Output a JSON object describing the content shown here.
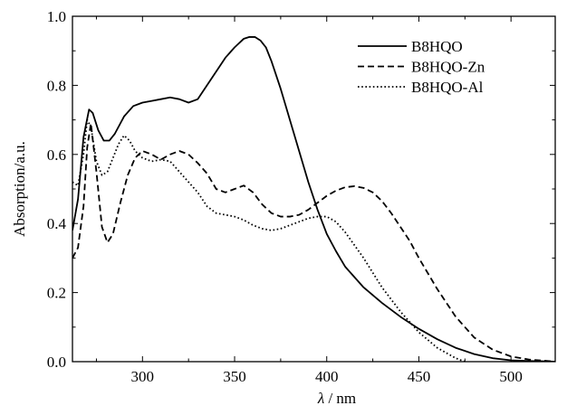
{
  "chart_data": {
    "type": "line",
    "xlabel_symbol": "λ",
    "xlabel_unit": " / nm",
    "ylabel": "Absorption/a.u.",
    "xlim": [
      262,
      524
    ],
    "ylim": [
      0.0,
      1.0
    ],
    "x_ticks": [
      300,
      350,
      400,
      450,
      500
    ],
    "x_tick_labels": [
      "300",
      "350",
      "400",
      "450",
      "500"
    ],
    "y_ticks": [
      0.0,
      0.2,
      0.4,
      0.6,
      0.8,
      1.0
    ],
    "y_tick_labels": [
      "0.0",
      "0.2",
      "0.4",
      "0.6",
      "0.8",
      "1.0"
    ],
    "legend_position": "top-right",
    "grid": false,
    "series": [
      {
        "name": "B8HQO",
        "line_style": "solid",
        "x": [
          262,
          265,
          268,
          271,
          273,
          276,
          279,
          282,
          285,
          290,
          295,
          300,
          305,
          310,
          315,
          320,
          325,
          330,
          335,
          340,
          345,
          350,
          355,
          358,
          361,
          364,
          367,
          370,
          375,
          380,
          385,
          390,
          395,
          400,
          405,
          410,
          420,
          430,
          440,
          450,
          460,
          470,
          480,
          490,
          500,
          510,
          520,
          524
        ],
        "y": [
          0.38,
          0.47,
          0.65,
          0.73,
          0.72,
          0.67,
          0.64,
          0.64,
          0.66,
          0.71,
          0.74,
          0.75,
          0.755,
          0.76,
          0.765,
          0.76,
          0.75,
          0.76,
          0.8,
          0.84,
          0.88,
          0.91,
          0.935,
          0.94,
          0.94,
          0.93,
          0.91,
          0.87,
          0.79,
          0.7,
          0.61,
          0.52,
          0.44,
          0.37,
          0.32,
          0.275,
          0.215,
          0.17,
          0.13,
          0.095,
          0.065,
          0.04,
          0.022,
          0.01,
          0.004,
          0.002,
          0.001,
          0.0
        ]
      },
      {
        "name": "B8HQO-Zn",
        "line_style": "dashed",
        "x": [
          262,
          265,
          268,
          270,
          272,
          275,
          278,
          281,
          284,
          288,
          292,
          296,
          300,
          305,
          310,
          315,
          320,
          325,
          330,
          335,
          340,
          345,
          350,
          355,
          360,
          365,
          370,
          375,
          380,
          385,
          390,
          395,
          400,
          405,
          410,
          415,
          420,
          425,
          430,
          435,
          440,
          445,
          450,
          460,
          470,
          480,
          490,
          500,
          510,
          520,
          524
        ],
        "y": [
          0.3,
          0.33,
          0.45,
          0.62,
          0.69,
          0.55,
          0.39,
          0.345,
          0.37,
          0.46,
          0.54,
          0.59,
          0.61,
          0.6,
          0.585,
          0.6,
          0.61,
          0.6,
          0.575,
          0.545,
          0.5,
          0.49,
          0.5,
          0.51,
          0.49,
          0.455,
          0.43,
          0.42,
          0.42,
          0.425,
          0.44,
          0.46,
          0.48,
          0.495,
          0.505,
          0.508,
          0.503,
          0.49,
          0.465,
          0.43,
          0.39,
          0.35,
          0.3,
          0.21,
          0.13,
          0.07,
          0.035,
          0.015,
          0.006,
          0.002,
          0.0
        ]
      },
      {
        "name": "B8HQO-Al",
        "line_style": "dotted",
        "x": [
          262,
          265,
          268,
          270,
          272,
          275,
          278,
          281,
          284,
          287,
          290,
          293,
          296,
          300,
          305,
          310,
          315,
          320,
          325,
          330,
          335,
          340,
          345,
          350,
          355,
          360,
          365,
          370,
          375,
          380,
          385,
          390,
          395,
          400,
          405,
          410,
          420,
          430,
          440,
          450,
          460,
          470,
          475
        ],
        "y": [
          0.52,
          0.51,
          0.6,
          0.7,
          0.68,
          0.58,
          0.54,
          0.55,
          0.59,
          0.63,
          0.655,
          0.64,
          0.61,
          0.59,
          0.58,
          0.585,
          0.58,
          0.55,
          0.52,
          0.49,
          0.45,
          0.43,
          0.425,
          0.42,
          0.41,
          0.395,
          0.385,
          0.38,
          0.385,
          0.395,
          0.405,
          0.415,
          0.42,
          0.42,
          0.405,
          0.375,
          0.3,
          0.215,
          0.145,
          0.085,
          0.04,
          0.01,
          0.0
        ]
      }
    ]
  }
}
